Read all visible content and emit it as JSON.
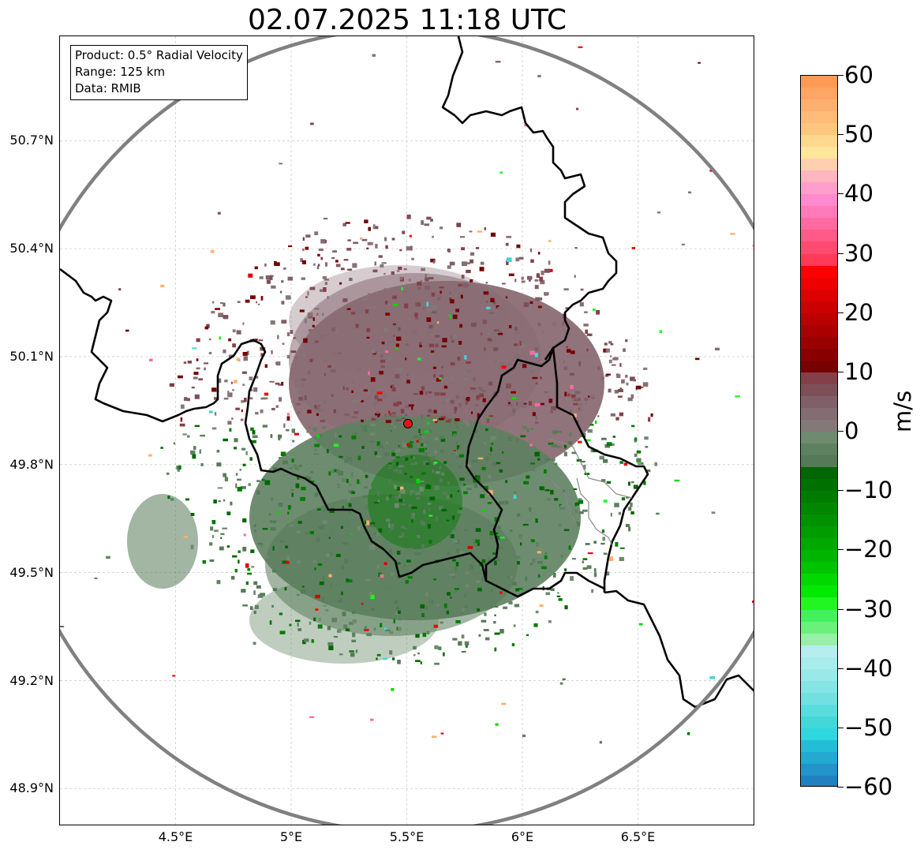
{
  "title": "02.07.2025 11:18 UTC",
  "info_box": {
    "product": "Product: 0.5° Radial Velocity",
    "range": "Range: 125 km",
    "data_source": "Data: RMIB"
  },
  "map": {
    "lon_range": [
      4.0,
      7.0
    ],
    "lat_range": [
      48.8,
      50.99
    ],
    "x_ticks": [
      {
        "value": 4.5,
        "label": "4.5°E"
      },
      {
        "value": 5.0,
        "label": "5°E"
      },
      {
        "value": 5.5,
        "label": "5.5°E"
      },
      {
        "value": 6.0,
        "label": "6°E"
      },
      {
        "value": 6.5,
        "label": "6.5°E"
      }
    ],
    "y_ticks": [
      {
        "value": 48.9,
        "label": "48.9°N"
      },
      {
        "value": 49.2,
        "label": "49.2°N"
      },
      {
        "value": 49.5,
        "label": "49.5°N"
      },
      {
        "value": 49.8,
        "label": "49.8°N"
      },
      {
        "value": 50.1,
        "label": "50.1°N"
      },
      {
        "value": 50.4,
        "label": "50.4°N"
      },
      {
        "value": 50.7,
        "label": "50.7°N"
      }
    ],
    "radar_site": {
      "lon": 5.505,
      "lat": 49.914,
      "color": "#e8101a"
    },
    "range_ring_color": "#808080",
    "border_color": "#000000",
    "gridlines": true
  },
  "colorbar": {
    "unit": "m/s",
    "min": -60,
    "max": 60,
    "tick_labels": [
      {
        "value": 60,
        "label": "60"
      },
      {
        "value": 50,
        "label": "50"
      },
      {
        "value": 40,
        "label": "40"
      },
      {
        "value": 30,
        "label": "30"
      },
      {
        "value": 20,
        "label": "20"
      },
      {
        "value": 10,
        "label": "10"
      },
      {
        "value": 0,
        "label": "0"
      },
      {
        "value": -10,
        "label": "−10"
      },
      {
        "value": -20,
        "label": "−20"
      },
      {
        "value": -30,
        "label": "−30"
      },
      {
        "value": -40,
        "label": "−40"
      },
      {
        "value": -50,
        "label": "−50"
      },
      {
        "value": -60,
        "label": "−60"
      }
    ],
    "bands": [
      {
        "from": 58,
        "to": 60,
        "color": "#ff9a55"
      },
      {
        "from": 56,
        "to": 58,
        "color": "#ffa565"
      },
      {
        "from": 54,
        "to": 56,
        "color": "#ffb070"
      },
      {
        "from": 52,
        "to": 54,
        "color": "#ffbb7a"
      },
      {
        "from": 50,
        "to": 52,
        "color": "#ffc680"
      },
      {
        "from": 48,
        "to": 50,
        "color": "#ffd890"
      },
      {
        "from": 46,
        "to": 48,
        "color": "#ffe69a"
      },
      {
        "from": 44,
        "to": 46,
        "color": "#ffcfb0"
      },
      {
        "from": 42,
        "to": 44,
        "color": "#ffb6c0"
      },
      {
        "from": 40,
        "to": 42,
        "color": "#ff9ecc"
      },
      {
        "from": 38,
        "to": 40,
        "color": "#ff8acd"
      },
      {
        "from": 36,
        "to": 38,
        "color": "#ff7ab8"
      },
      {
        "from": 34,
        "to": 36,
        "color": "#ff6aa0"
      },
      {
        "from": 32,
        "to": 34,
        "color": "#ff5a88"
      },
      {
        "from": 30,
        "to": 32,
        "color": "#ff4a70"
      },
      {
        "from": 28,
        "to": 30,
        "color": "#ff3a58"
      },
      {
        "from": 26,
        "to": 28,
        "color": "#ff0000"
      },
      {
        "from": 24,
        "to": 26,
        "color": "#ee0000"
      },
      {
        "from": 22,
        "to": 24,
        "color": "#dd0000"
      },
      {
        "from": 20,
        "to": 22,
        "color": "#cc0000"
      },
      {
        "from": 18,
        "to": 20,
        "color": "#bb0000"
      },
      {
        "from": 16,
        "to": 18,
        "color": "#aa0000"
      },
      {
        "from": 14,
        "to": 16,
        "color": "#990000"
      },
      {
        "from": 12,
        "to": 14,
        "color": "#880000"
      },
      {
        "from": 10,
        "to": 12,
        "color": "#770000"
      },
      {
        "from": 8,
        "to": 10,
        "color": "#844048"
      },
      {
        "from": 6,
        "to": 8,
        "color": "#7d5058"
      },
      {
        "from": 4,
        "to": 6,
        "color": "#806068"
      },
      {
        "from": 2,
        "to": 4,
        "color": "#846c74"
      },
      {
        "from": 0,
        "to": 2,
        "color": "#857878"
      },
      {
        "from": -2,
        "to": 0,
        "color": "#6f8a6f"
      },
      {
        "from": -4,
        "to": -2,
        "color": "#5e8160"
      },
      {
        "from": -6,
        "to": -4,
        "color": "#567a58"
      },
      {
        "from": -8,
        "to": -6,
        "color": "#006600"
      },
      {
        "from": -10,
        "to": -8,
        "color": "#007000"
      },
      {
        "from": -12,
        "to": -10,
        "color": "#007b00"
      },
      {
        "from": -14,
        "to": -12,
        "color": "#008600"
      },
      {
        "from": -16,
        "to": -14,
        "color": "#009100"
      },
      {
        "from": -18,
        "to": -16,
        "color": "#009c00"
      },
      {
        "from": -20,
        "to": -18,
        "color": "#00a800"
      },
      {
        "from": -22,
        "to": -20,
        "color": "#00b400"
      },
      {
        "from": -24,
        "to": -22,
        "color": "#00c400"
      },
      {
        "from": -26,
        "to": -24,
        "color": "#00d800"
      },
      {
        "from": -28,
        "to": -26,
        "color": "#00ea00"
      },
      {
        "from": -30,
        "to": -28,
        "color": "#22f622"
      },
      {
        "from": -32,
        "to": -30,
        "color": "#44f060"
      },
      {
        "from": -34,
        "to": -32,
        "color": "#6cf07c"
      },
      {
        "from": -36,
        "to": -34,
        "color": "#98f0a8"
      },
      {
        "from": -38,
        "to": -36,
        "color": "#b6eeee"
      },
      {
        "from": -40,
        "to": -38,
        "color": "#a8ecec"
      },
      {
        "from": -42,
        "to": -40,
        "color": "#9ae8e8"
      },
      {
        "from": -44,
        "to": -42,
        "color": "#86e4e4"
      },
      {
        "from": -46,
        "to": -44,
        "color": "#72e0e0"
      },
      {
        "from": -48,
        "to": -46,
        "color": "#5adcdc"
      },
      {
        "from": -50,
        "to": -48,
        "color": "#42d8d8"
      },
      {
        "from": -52,
        "to": -50,
        "color": "#2ed6de"
      },
      {
        "from": -54,
        "to": -52,
        "color": "#22bed6"
      },
      {
        "from": -56,
        "to": -54,
        "color": "#22aad0"
      },
      {
        "from": -58,
        "to": -56,
        "color": "#2294c8"
      },
      {
        "from": -60,
        "to": -58,
        "color": "#2080c0"
      }
    ]
  }
}
